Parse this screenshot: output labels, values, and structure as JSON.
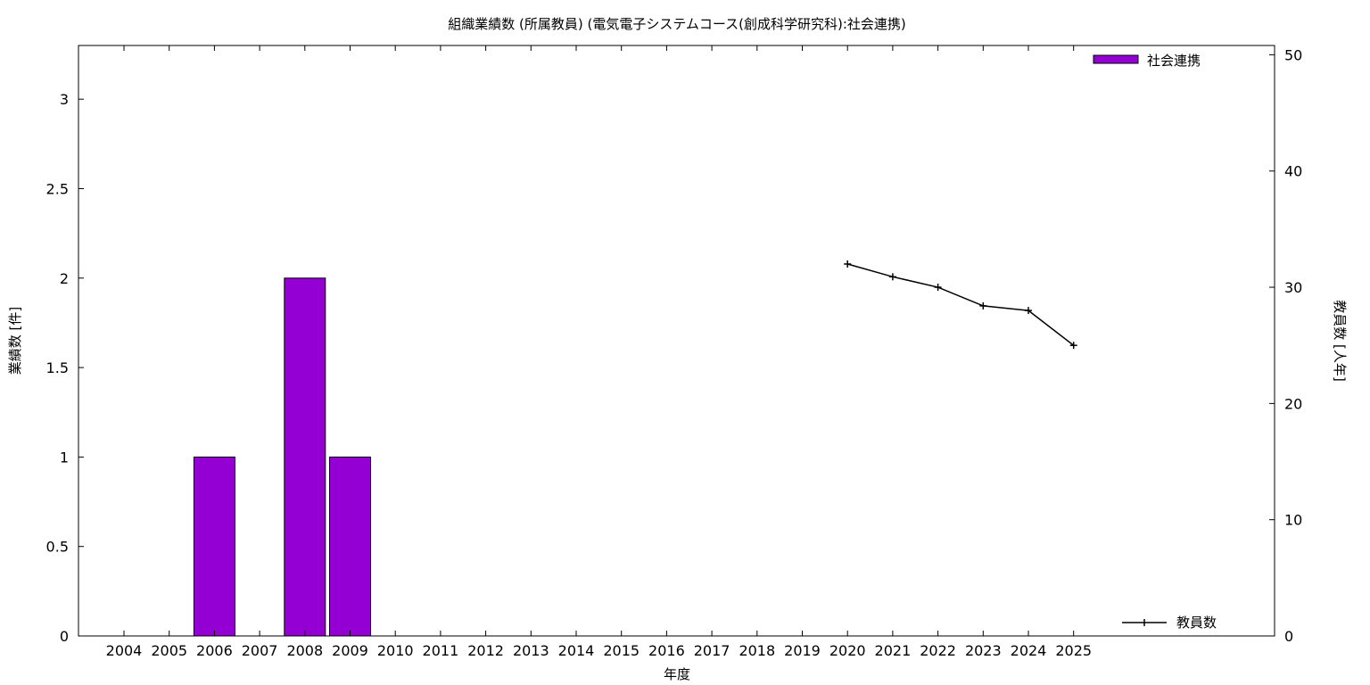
{
  "chart_data": {
    "type": "bar",
    "title": "組織業績数 (所属教員) (電気電子システムコース(創成科学研究科):社会連携)",
    "xlabel": "年度",
    "ylabel": "業績数 [件]",
    "y2label": "教員数 [人年]",
    "categories": [
      "2004",
      "2005",
      "2006",
      "2007",
      "2008",
      "2009",
      "2010",
      "2011",
      "2012",
      "2013",
      "2014",
      "2015",
      "2016",
      "2017",
      "2018",
      "2019",
      "2020",
      "2021",
      "2022",
      "2023",
      "2024",
      "2025"
    ],
    "ylim": [
      0,
      3.3
    ],
    "yticks": [
      "0",
      "0.5",
      "1",
      "1.5",
      "2",
      "2.5",
      "3"
    ],
    "y2lim": [
      0,
      50.8
    ],
    "y2ticks": [
      "0",
      "10",
      "20",
      "30",
      "40",
      "50"
    ],
    "grid": false,
    "series": [
      {
        "name": "社会連携",
        "type": "bar",
        "axis": "y",
        "color": "#9400d3",
        "values": [
          0,
          0,
          1,
          0,
          2,
          1,
          0,
          0,
          0,
          0,
          0,
          0,
          0,
          0,
          0,
          0,
          0,
          0,
          0,
          0,
          0,
          0
        ]
      },
      {
        "name": "教員数",
        "type": "line",
        "axis": "y2",
        "color": "#000000",
        "marker": "plus",
        "x": [
          "2020",
          "2021",
          "2022",
          "2023",
          "2024",
          "2025"
        ],
        "values": [
          32.0,
          30.9,
          30.0,
          28.4,
          28.0,
          25.0
        ]
      }
    ],
    "legend": [
      {
        "label": "社会連携",
        "placement": "top-right"
      },
      {
        "label": "教員数",
        "placement": "bottom-right"
      }
    ]
  }
}
